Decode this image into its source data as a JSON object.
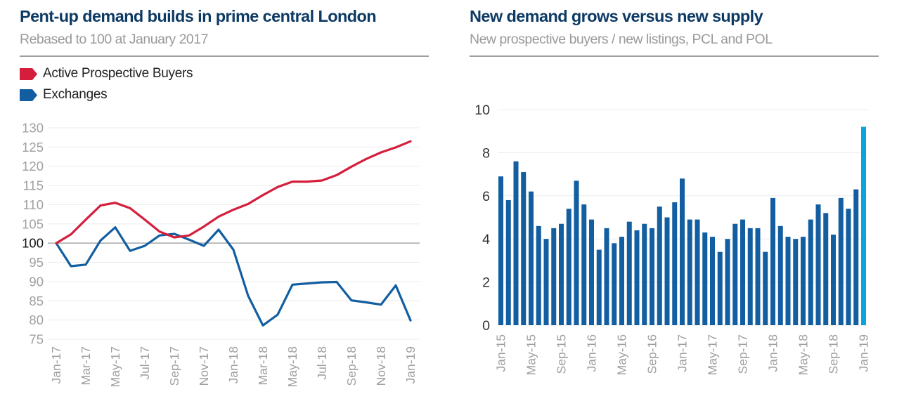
{
  "colors": {
    "title": "#0d3a64",
    "subtitle": "#9a9a9a",
    "red_series": "#d51e3c",
    "blue_series": "#125ea1",
    "highlight_bar": "#0aa5da",
    "gridline": "#ececec",
    "baseline": "#a8a8a8",
    "tick_label_grey": "#a0a0a0",
    "tick_label_dark": "#333333"
  },
  "chart_data": [
    {
      "type": "line",
      "title": "Pent-up demand builds in prime central London",
      "subtitle": "Rebased to 100 at January 2017",
      "xlabel": "",
      "ylabel": "",
      "ylim": [
        75,
        130
      ],
      "yticks": [
        130,
        125,
        120,
        115,
        110,
        105,
        100,
        95,
        90,
        85,
        80,
        75
      ],
      "highlighted_ytick": 100,
      "grid": true,
      "legend_position": "top-left",
      "x": [
        "Jan-17",
        "Feb-17",
        "Mar-17",
        "Apr-17",
        "May-17",
        "Jun-17",
        "Jul-17",
        "Aug-17",
        "Sep-17",
        "Oct-17",
        "Nov-17",
        "Dec-17",
        "Jan-18",
        "Feb-18",
        "Mar-18",
        "Apr-18",
        "May-18",
        "Jun-18",
        "Jul-18",
        "Aug-18",
        "Sep-18",
        "Oct-18",
        "Nov-18",
        "Dec-18",
        "Jan-19"
      ],
      "xtick_labels": [
        "Jan-17",
        "Mar-17",
        "May-17",
        "Jul-17",
        "Sep-17",
        "Nov-17",
        "Jan-18",
        "Mar-18",
        "May-18",
        "Jul-18",
        "Sep-18",
        "Nov-18",
        "Jan-19"
      ],
      "series": [
        {
          "name": "Active Prospective Buyers",
          "color_key": "red_series",
          "values": [
            100,
            102.3,
            106.1,
            109.8,
            110.5,
            109.1,
            106.1,
            103.0,
            101.5,
            102.0,
            104.3,
            106.9,
            108.7,
            110.2,
            112.5,
            114.6,
            116.0,
            116.0,
            116.3,
            117.7,
            119.9,
            121.9,
            123.6,
            124.9,
            126.5
          ]
        },
        {
          "name": "Exchanges",
          "color_key": "blue_series",
          "values": [
            100,
            94.0,
            94.4,
            100.7,
            104.1,
            98.0,
            99.3,
            102.0,
            102.4,
            100.9,
            99.3,
            103.5,
            98.3,
            86.3,
            78.6,
            81.4,
            89.2,
            89.5,
            89.8,
            89.9,
            85.1,
            84.6,
            84.0,
            89.0,
            79.9
          ]
        }
      ]
    },
    {
      "type": "bar",
      "title": "New demand grows versus new supply",
      "subtitle": "New prospective buyers / new listings, PCL and POL",
      "xlabel": "",
      "ylabel": "",
      "ylim": [
        0,
        10
      ],
      "yticks": [
        10,
        8,
        6,
        4,
        2,
        0
      ],
      "grid": true,
      "categories": [
        "Jan-15",
        "Feb-15",
        "Mar-15",
        "Apr-15",
        "May-15",
        "Jun-15",
        "Jul-15",
        "Aug-15",
        "Sep-15",
        "Oct-15",
        "Nov-15",
        "Dec-15",
        "Jan-16",
        "Feb-16",
        "Mar-16",
        "Apr-16",
        "May-16",
        "Jun-16",
        "Jul-16",
        "Aug-16",
        "Sep-16",
        "Oct-16",
        "Nov-16",
        "Dec-16",
        "Jan-17",
        "Feb-17",
        "Mar-17",
        "Apr-17",
        "May-17",
        "Jun-17",
        "Jul-17",
        "Aug-17",
        "Sep-17",
        "Oct-17",
        "Nov-17",
        "Dec-17",
        "Jan-18",
        "Feb-18",
        "Mar-18",
        "Apr-18",
        "May-18",
        "Jun-18",
        "Jul-18",
        "Aug-18",
        "Sep-18",
        "Oct-18",
        "Nov-18",
        "Dec-18",
        "Jan-19"
      ],
      "xtick_labels": [
        "Jan-15",
        "May-15",
        "Sep-15",
        "Jan-16",
        "May-16",
        "Sep-16",
        "Jan-17",
        "May-17",
        "Sep-17",
        "Jan-18",
        "May-18",
        "Sep-18",
        "Jan-19"
      ],
      "values": [
        6.9,
        5.8,
        7.6,
        7.1,
        6.2,
        4.6,
        4.0,
        4.5,
        4.7,
        5.4,
        6.7,
        5.6,
        4.9,
        3.5,
        4.5,
        3.8,
        4.1,
        4.8,
        4.4,
        4.7,
        4.5,
        5.5,
        5.0,
        5.7,
        6.8,
        4.9,
        4.9,
        4.3,
        4.1,
        3.4,
        4.0,
        4.7,
        4.9,
        4.5,
        4.5,
        3.4,
        5.9,
        4.6,
        4.1,
        4.0,
        4.1,
        4.9,
        5.6,
        5.2,
        4.2,
        5.9,
        5.4,
        6.3,
        9.2
      ],
      "highlighted_category": "Jan-19"
    }
  ]
}
